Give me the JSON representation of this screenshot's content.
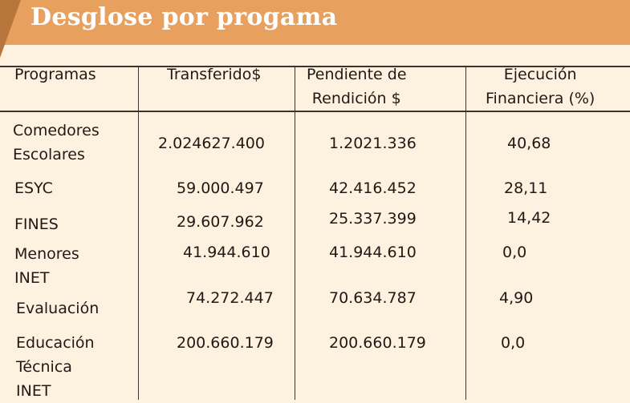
{
  "title": "Desglose por progama",
  "columns": [
    "Programas",
    "Transferido$",
    "Pendiente de\nRendición $",
    "Ejecución\nFinanciera (%)"
  ],
  "rows": [
    {
      "programa": "Comedores\nEscolares",
      "transferido": "2.024627.400",
      "pendiente": "1.2021.336",
      "ejecucion": "40,68"
    },
    {
      "programa": "ESYC",
      "transferido": "59.000.497",
      "pendiente": "42.416.452",
      "ejecucion": "28,11"
    },
    {
      "programa": "FINES",
      "transferido": "29.607.962",
      "pendiente": "25.337.399",
      "ejecucion": "14,42"
    },
    {
      "programa": "Menores\nINET",
      "transferido": "41.944.610",
      "pendiente": "41.944.610",
      "ejecucion": "0,0"
    },
    {
      "programa": "Evaluación",
      "transferido": "74.272.447",
      "pendiente": "70.634.787",
      "ejecucion": "4,90"
    },
    {
      "programa": "Educación\nTécnica\nINET",
      "transferido": "200.660.179",
      "pendiente": "200.660.179",
      "ejecucion": "0,0"
    }
  ]
}
